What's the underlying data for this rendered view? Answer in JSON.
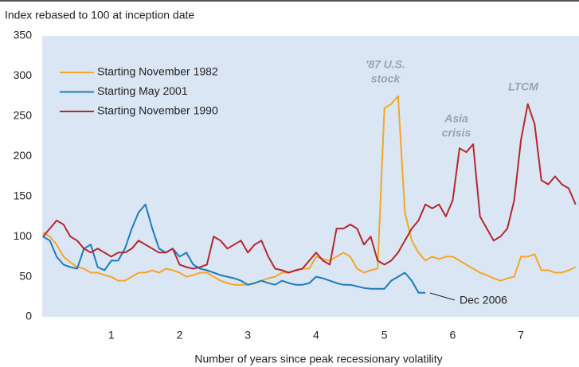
{
  "chart_data": {
    "type": "line",
    "ylabel": "Index rebased to 100 at inception date",
    "xlabel": "Number of years since peak recessionary volatility",
    "xlim": [
      0,
      7.85
    ],
    "xticks": [
      1,
      2,
      3,
      4,
      5,
      6,
      7
    ],
    "ylim": [
      0,
      350
    ],
    "yticks": [
      0,
      50,
      100,
      150,
      200,
      250,
      300,
      350
    ],
    "grid": false,
    "legend": "upper left",
    "x": [
      0,
      0.1,
      0.2,
      0.3,
      0.4,
      0.5,
      0.6,
      0.7,
      0.8,
      0.9,
      1,
      1.1,
      1.2,
      1.3,
      1.4,
      1.5,
      1.6,
      1.7,
      1.8,
      1.9,
      2,
      2.1,
      2.2,
      2.3,
      2.4,
      2.5,
      2.6,
      2.7,
      2.8,
      2.9,
      3,
      3.1,
      3.2,
      3.3,
      3.4,
      3.5,
      3.6,
      3.7,
      3.8,
      3.9,
      4,
      4.1,
      4.2,
      4.3,
      4.4,
      4.5,
      4.6,
      4.7,
      4.8,
      4.9,
      5,
      5.1,
      5.2,
      5.3,
      5.4,
      5.5,
      5.6,
      5.7,
      5.8,
      5.9,
      6,
      6.1,
      6.2,
      6.3,
      6.4,
      6.5,
      6.6,
      6.7,
      6.8,
      6.9,
      7,
      7.1,
      7.2,
      7.3,
      7.4,
      7.5,
      7.6,
      7.7,
      7.8
    ],
    "series": [
      {
        "name": "Starting November 1982",
        "color": "#f5a623",
        "values": [
          105,
          100,
          90,
          75,
          68,
          62,
          60,
          55,
          55,
          52,
          50,
          45,
          45,
          50,
          55,
          55,
          58,
          55,
          60,
          58,
          55,
          50,
          52,
          55,
          55,
          50,
          45,
          42,
          40,
          40,
          40,
          42,
          45,
          48,
          50,
          55,
          55,
          58,
          60,
          60,
          75,
          72,
          70,
          75,
          80,
          75,
          60,
          55,
          58,
          60,
          260,
          265,
          275,
          130,
          95,
          80,
          70,
          75,
          72,
          75,
          75,
          70,
          65,
          60,
          55,
          52,
          48,
          45,
          48,
          50,
          75,
          75,
          78,
          58,
          58,
          55,
          55,
          58,
          62
        ]
      },
      {
        "name": "Starting May 2001",
        "color": "#1b7bc0",
        "values": [
          100,
          95,
          75,
          65,
          62,
          60,
          85,
          90,
          62,
          58,
          70,
          70,
          85,
          110,
          130,
          140,
          110,
          85,
          80,
          85,
          75,
          80,
          65,
          60,
          58,
          55,
          52,
          50,
          48,
          45,
          40,
          42,
          45,
          42,
          40,
          45,
          42,
          40,
          40,
          42,
          50,
          48,
          45,
          42,
          40,
          40,
          38,
          36,
          35,
          35,
          35,
          45,
          50,
          55,
          45,
          30,
          30,
          null,
          null,
          null,
          null,
          null,
          null,
          null,
          null,
          null,
          null,
          null,
          null,
          null,
          null,
          null,
          null,
          null,
          null,
          null,
          null,
          null,
          null
        ]
      },
      {
        "name": "Starting November 1990",
        "color": "#b5272d",
        "values": [
          100,
          110,
          120,
          115,
          100,
          95,
          85,
          80,
          85,
          80,
          75,
          80,
          80,
          85,
          95,
          90,
          85,
          80,
          80,
          85,
          65,
          62,
          60,
          62,
          65,
          100,
          95,
          85,
          90,
          95,
          80,
          90,
          95,
          75,
          60,
          58,
          55,
          58,
          60,
          70,
          80,
          70,
          65,
          110,
          110,
          115,
          110,
          90,
          100,
          70,
          65,
          70,
          80,
          95,
          110,
          120,
          140,
          135,
          140,
          125,
          145,
          210,
          205,
          215,
          125,
          110,
          95,
          100,
          110,
          145,
          220,
          265,
          240,
          170,
          165,
          175,
          165,
          160,
          140
        ]
      }
    ],
    "annotations": [
      {
        "lines": [
          "'87 U.S.",
          "stock"
        ]
      },
      {
        "lines": [
          "Asia",
          "crisis"
        ]
      },
      {
        "lines": [
          "LTCM"
        ]
      },
      {
        "lines": [
          "Dec 2006"
        ]
      }
    ]
  }
}
